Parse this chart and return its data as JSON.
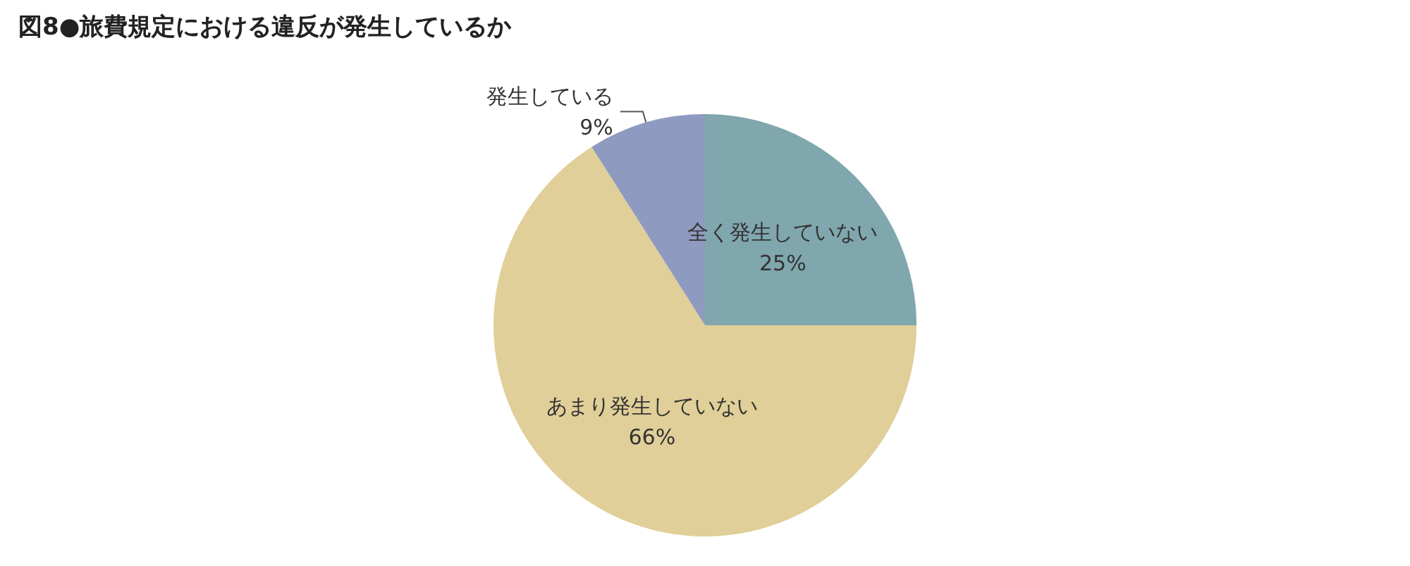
{
  "chart_data": {
    "type": "pie",
    "title": "図8●旅費規定における違反が発生しているか",
    "categories": [
      "全く発生していない",
      "あまり発生していない",
      "発生している"
    ],
    "values": [
      25,
      66,
      9
    ],
    "value_labels": [
      "25%",
      "66%",
      "9%"
    ],
    "colors": [
      "#7fa7ad",
      "#e0cf98",
      "#8f9ac0"
    ],
    "legend": false
  }
}
